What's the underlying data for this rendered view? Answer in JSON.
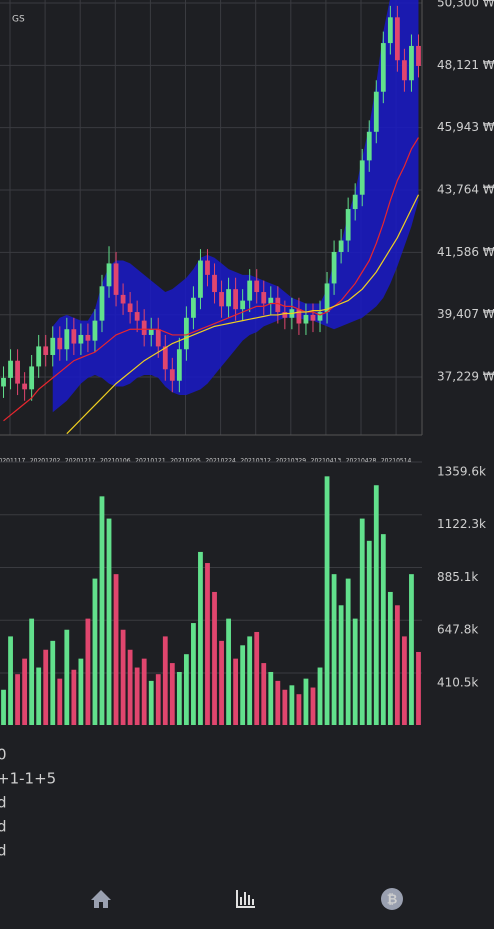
{
  "chart_data": {
    "type": "candlestick",
    "title": "GS",
    "open": [
      36900,
      37200,
      37800,
      37000,
      36800,
      37600,
      38300,
      38000,
      38600,
      38200,
      38900,
      38400,
      38700,
      38500,
      39200,
      40400,
      41200,
      40100,
      39800,
      39500,
      39200,
      38700,
      38900,
      38300,
      37500,
      37100,
      38200,
      39300,
      40000,
      41300,
      40800,
      40200,
      39700,
      40300,
      39600,
      39900,
      40600,
      40200,
      39800,
      40000,
      39500,
      39300,
      39600,
      39100,
      39400,
      39200,
      39500,
      40500,
      41600,
      42000,
      43100,
      43600,
      44800,
      45800,
      47200,
      48900,
      49800,
      48300,
      47600,
      48800
    ],
    "high": [
      37600,
      38200,
      38200,
      37400,
      38000,
      38700,
      38700,
      39000,
      39000,
      39300,
      39300,
      39100,
      39100,
      39600,
      40800,
      41800,
      41600,
      40500,
      40200,
      39900,
      39600,
      39300,
      39300,
      38700,
      37900,
      38600,
      39700,
      40400,
      41700,
      41700,
      41200,
      40600,
      40700,
      40700,
      40300,
      41000,
      41000,
      40600,
      40400,
      40400,
      39900,
      40000,
      40000,
      39800,
      39800,
      39900,
      40900,
      42000,
      42400,
      43500,
      44000,
      45200,
      46200,
      47600,
      49300,
      50200,
      50200,
      48700,
      49200,
      49200
    ],
    "low": [
      36500,
      36800,
      36600,
      36400,
      36400,
      37200,
      37600,
      37600,
      37800,
      37800,
      38000,
      38000,
      38100,
      38100,
      38800,
      40000,
      39700,
      39400,
      39100,
      38800,
      38300,
      38300,
      37900,
      37100,
      36700,
      36700,
      37800,
      38900,
      39600,
      40400,
      39800,
      39300,
      39300,
      39200,
      39200,
      39500,
      39800,
      39400,
      39400,
      39100,
      38900,
      38900,
      38700,
      38700,
      38800,
      38800,
      39100,
      40100,
      41200,
      41600,
      42700,
      43200,
      44400,
      45400,
      46800,
      48500,
      47900,
      47200,
      47200,
      47700
    ],
    "close": [
      37200,
      37800,
      37000,
      36800,
      37600,
      38300,
      38000,
      38600,
      38200,
      38900,
      38400,
      38700,
      38500,
      39200,
      40400,
      41200,
      40100,
      39800,
      39500,
      39200,
      38700,
      38900,
      38300,
      37500,
      37100,
      38200,
      39300,
      40000,
      41300,
      40800,
      40200,
      39700,
      40300,
      39600,
      39900,
      40600,
      40200,
      39800,
      40000,
      39500,
      39300,
      39600,
      39100,
      39400,
      39200,
      39500,
      40500,
      41600,
      42000,
      43100,
      43600,
      44800,
      45800,
      47200,
      48900,
      49800,
      48300,
      47600,
      48800,
      48100
    ],
    "volume": [
      380000,
      620000,
      450000,
      520000,
      700000,
      480000,
      560000,
      600000,
      430000,
      650000,
      470000,
      520000,
      700000,
      880000,
      1250000,
      1150000,
      900000,
      650000,
      560000,
      480000,
      520000,
      420000,
      450000,
      620000,
      500000,
      460000,
      540000,
      680000,
      1000000,
      950000,
      820000,
      600000,
      700000,
      520000,
      580000,
      620000,
      640000,
      500000,
      460000,
      420000,
      380000,
      400000,
      360000,
      430000,
      390000,
      480000,
      1340000,
      900000,
      760000,
      880000,
      700000,
      1150000,
      1050000,
      1300000,
      1080000,
      820000,
      760000,
      620000,
      900000,
      550000
    ],
    "ma_short": [
      35700,
      35900,
      36100,
      36300,
      36500,
      36800,
      37000,
      37200,
      37400,
      37600,
      37800,
      37900,
      38000,
      38100,
      38300,
      38500,
      38700,
      38800,
      38900,
      38900,
      38900,
      38900,
      38900,
      38800,
      38700,
      38700,
      38700,
      38800,
      38900,
      39000,
      39100,
      39200,
      39300,
      39400,
      39500,
      39600,
      39700,
      39700,
      39800,
      39800,
      39700,
      39700,
      39600,
      39500,
      39500,
      39400,
      39500,
      39700,
      39900,
      40200,
      40500,
      40900,
      41300,
      41900,
      42600,
      43400,
      44100,
      44600,
      45200,
      45600
    ],
    "ma_long": [
      null,
      null,
      null,
      null,
      null,
      null,
      null,
      null,
      null,
      35250,
      35500,
      35750,
      36000,
      36250,
      36500,
      36750,
      37000,
      37200,
      37400,
      37600,
      37800,
      37950,
      38100,
      38250,
      38400,
      38500,
      38600,
      38700,
      38800,
      38900,
      39000,
      39050,
      39100,
      39150,
      39200,
      39250,
      39300,
      39350,
      39400,
      39400,
      39450,
      39450,
      39500,
      39500,
      39550,
      39550,
      39600,
      39700,
      39800,
      39900,
      40100,
      40300,
      40600,
      40900,
      41300,
      41700,
      42100,
      42600,
      43100,
      43600
    ],
    "band_upper": [
      null,
      null,
      null,
      null,
      null,
      null,
      null,
      39000,
      39300,
      39400,
      39300,
      39200,
      39200,
      39600,
      40500,
      41100,
      41300,
      41300,
      41200,
      41000,
      40800,
      40600,
      40400,
      40200,
      40300,
      40500,
      40700,
      41000,
      41400,
      41500,
      41400,
      41200,
      41000,
      40900,
      40800,
      40800,
      40700,
      40600,
      40500,
      40400,
      40200,
      40000,
      39900,
      39800,
      39800,
      39800,
      40300,
      41300,
      41900,
      42900,
      43700,
      44900,
      46000,
      47500,
      49300,
      50500,
      51000,
      51200,
      51400,
      51500
    ],
    "band_lower": [
      null,
      null,
      null,
      null,
      null,
      null,
      null,
      36000,
      36200,
      36400,
      36700,
      37000,
      37200,
      37300,
      37200,
      37000,
      36900,
      36900,
      37000,
      37200,
      37300,
      37300,
      37200,
      36900,
      36700,
      36600,
      36600,
      36700,
      36800,
      37000,
      37300,
      37600,
      37900,
      38200,
      38500,
      38700,
      38800,
      39000,
      39100,
      39200,
      39300,
      39300,
      39300,
      39200,
      39200,
      39100,
      39000,
      38900,
      39000,
      39100,
      39200,
      39300,
      39500,
      39700,
      40000,
      40500,
      41100,
      41800,
      42500,
      43400
    ],
    "up_color": "#62e08c",
    "down_color": "#e0466e",
    "ma_short_color": "#e8262e",
    "ma_long_color": "#f0d020",
    "band_color": "#1a1ac8",
    "ylim": [
      35204,
      50405
    ],
    "yticks": [
      {
        "value": 37229,
        "label": "37,229 ₩"
      },
      {
        "value": 39407,
        "label": "39,407 ₩"
      },
      {
        "value": 41586,
        "label": "41,586 ₩"
      },
      {
        "value": 43764,
        "label": "43,764 ₩"
      },
      {
        "value": 45943,
        "label": "45,943 ₩"
      },
      {
        "value": 48121,
        "label": "48,121 ₩"
      },
      {
        "value": 50300,
        "label": "50,300 ₩"
      }
    ],
    "volume_ylim": [
      221500,
      1400000
    ],
    "volume_yticks": [
      {
        "value": 410500,
        "label": "410.5k"
      },
      {
        "value": 647800,
        "label": "647.8k"
      },
      {
        "value": 885100,
        "label": "885.1k"
      },
      {
        "value": 1122300,
        "label": "1122.3k"
      },
      {
        "value": 1359600,
        "label": "1359.6k"
      }
    ],
    "xlabels": [
      "20201117",
      "20201202",
      "20201217",
      "20210106",
      "20210121",
      "20210205",
      "20210224",
      "20210312",
      "20210329",
      "20210413",
      "20210428",
      "20210514"
    ],
    "grid": true
  },
  "info_lines": [
    "0",
    "+1-1+5",
    "d",
    "d",
    "d"
  ]
}
